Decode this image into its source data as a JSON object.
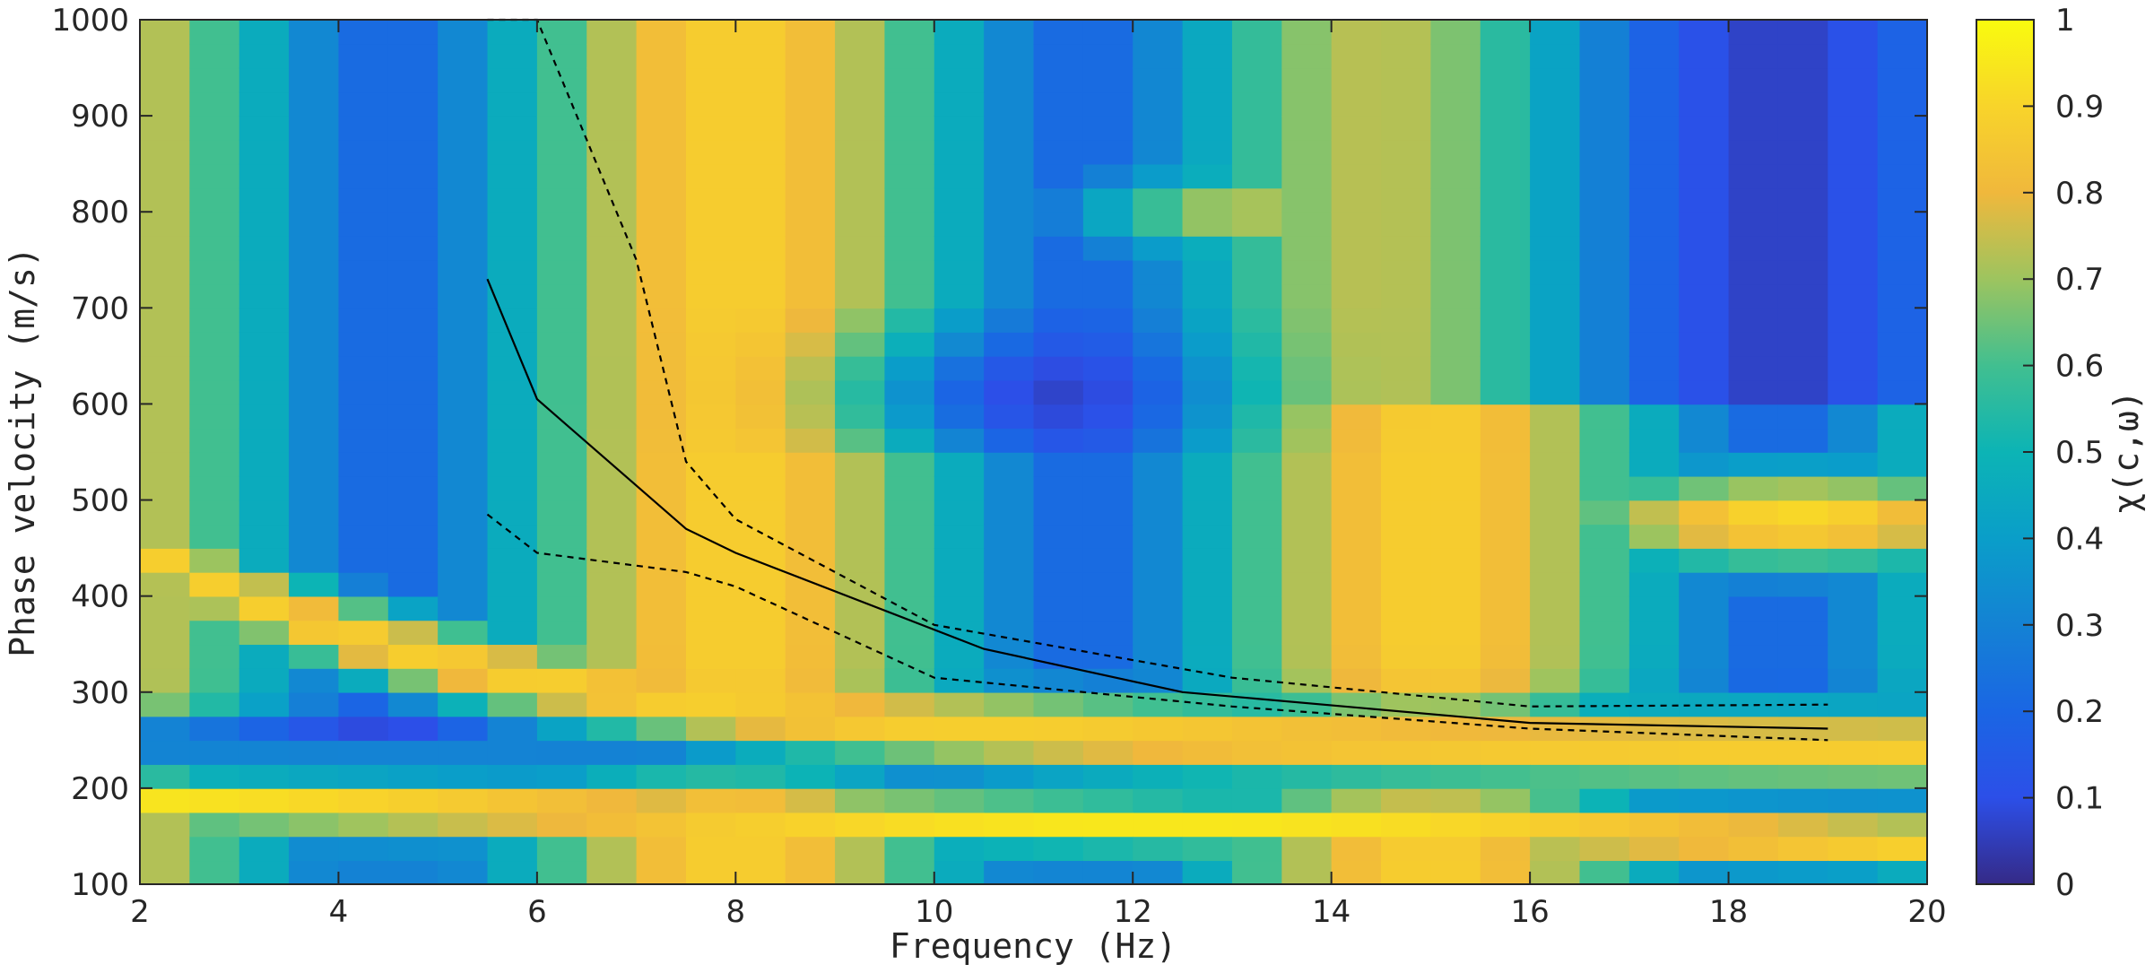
{
  "chart_data": {
    "type": "heatmap",
    "title": "",
    "xlabel": "Frequency (Hz)",
    "ylabel": "Phase velocity (m/s)",
    "colorbar_label": "χ(c,ω)",
    "xlim": [
      2,
      20
    ],
    "ylim": [
      100,
      1000
    ],
    "clim": [
      0,
      1
    ],
    "x_ticks": [
      "2",
      "4",
      "6",
      "8",
      "10",
      "12",
      "14",
      "16",
      "18",
      "20"
    ],
    "y_ticks": [
      "100",
      "200",
      "300",
      "400",
      "500",
      "600",
      "700",
      "800",
      "900",
      "1000"
    ],
    "colorbar_ticks": [
      "0",
      "0.1",
      "0.2",
      "0.3",
      "0.4",
      "0.5",
      "0.6",
      "0.7",
      "0.8",
      "0.9",
      "1"
    ],
    "colormap": "parula",
    "freq_step_hz": 0.5,
    "series": [
      {
        "name": "dispersion curve",
        "style": "solid",
        "color": "#000000",
        "x": [
          5.5,
          6,
          7.5,
          8,
          10.5,
          12.5,
          16,
          19
        ],
        "y": [
          730,
          605,
          470,
          445,
          345,
          300,
          268,
          262
        ]
      },
      {
        "name": "upper bound",
        "style": "dashed",
        "color": "#000000",
        "x": [
          5.5,
          6,
          7,
          7.5,
          8,
          10,
          13,
          16,
          19
        ],
        "y": [
          1000,
          1000,
          750,
          540,
          480,
          370,
          315,
          285,
          287
        ]
      },
      {
        "name": "lower bound",
        "style": "dashed",
        "color": "#000000",
        "x": [
          5.5,
          6,
          7.5,
          8,
          10,
          13,
          16,
          19
        ],
        "y": [
          485,
          445,
          425,
          410,
          315,
          285,
          262,
          250
        ]
      }
    ]
  }
}
